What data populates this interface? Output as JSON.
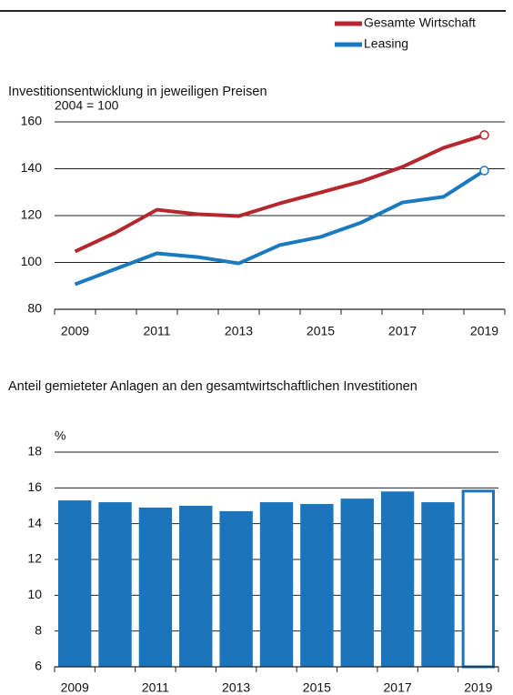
{
  "chart_data": [
    {
      "type": "line",
      "title": "Investitionsentwicklung in jeweiligen Preisen",
      "y_unit": "2004 = 100",
      "categories": [
        "2009",
        null,
        "2011",
        null,
        "2013",
        null,
        "2015",
        null,
        "2017",
        null,
        "2019"
      ],
      "series": [
        {
          "name": "Gesamte Wirtschaft",
          "color": "#b5262d",
          "values": [
            104.7,
            112.8,
            122.5,
            120.6,
            119.8,
            125.2,
            129.9,
            134.6,
            140.8,
            148.9,
            154.4
          ]
        },
        {
          "name": "Leasing",
          "color": "#1a7abf",
          "values": [
            90.7,
            97.3,
            103.9,
            102.3,
            99.6,
            107.4,
            110.9,
            117.1,
            125.6,
            128.0,
            139.2
          ]
        }
      ],
      "ylim": [
        80,
        160
      ],
      "yticks": [
        80,
        100,
        120,
        140,
        160
      ],
      "grid": true,
      "legend": "top-right"
    },
    {
      "type": "bar",
      "title": "Anteil gemieteter Anlagen an den gesamtwirtschaftlichen Investitionen",
      "y_unit": "%",
      "categories": [
        "2009",
        null,
        "2011",
        null,
        "2013",
        null,
        "2015",
        null,
        "2017",
        null,
        "2019"
      ],
      "values": [
        15.3,
        15.2,
        14.9,
        15.0,
        14.7,
        15.2,
        15.1,
        15.4,
        15.8,
        15.2,
        15.9
      ],
      "color": "#1a75bc",
      "fills": [
        "#1a75bc",
        "#1a75bc",
        "#1a75bc",
        "#1a75bc",
        "#1a75bc",
        "#1a75bc",
        "#1a75bc",
        "#1a75bc",
        "#1a75bc",
        "#1a75bc",
        "#ffffff"
      ],
      "ylim": [
        6,
        18
      ],
      "yticks": [
        6,
        8,
        10,
        12,
        14,
        16,
        18
      ],
      "grid": true
    }
  ]
}
